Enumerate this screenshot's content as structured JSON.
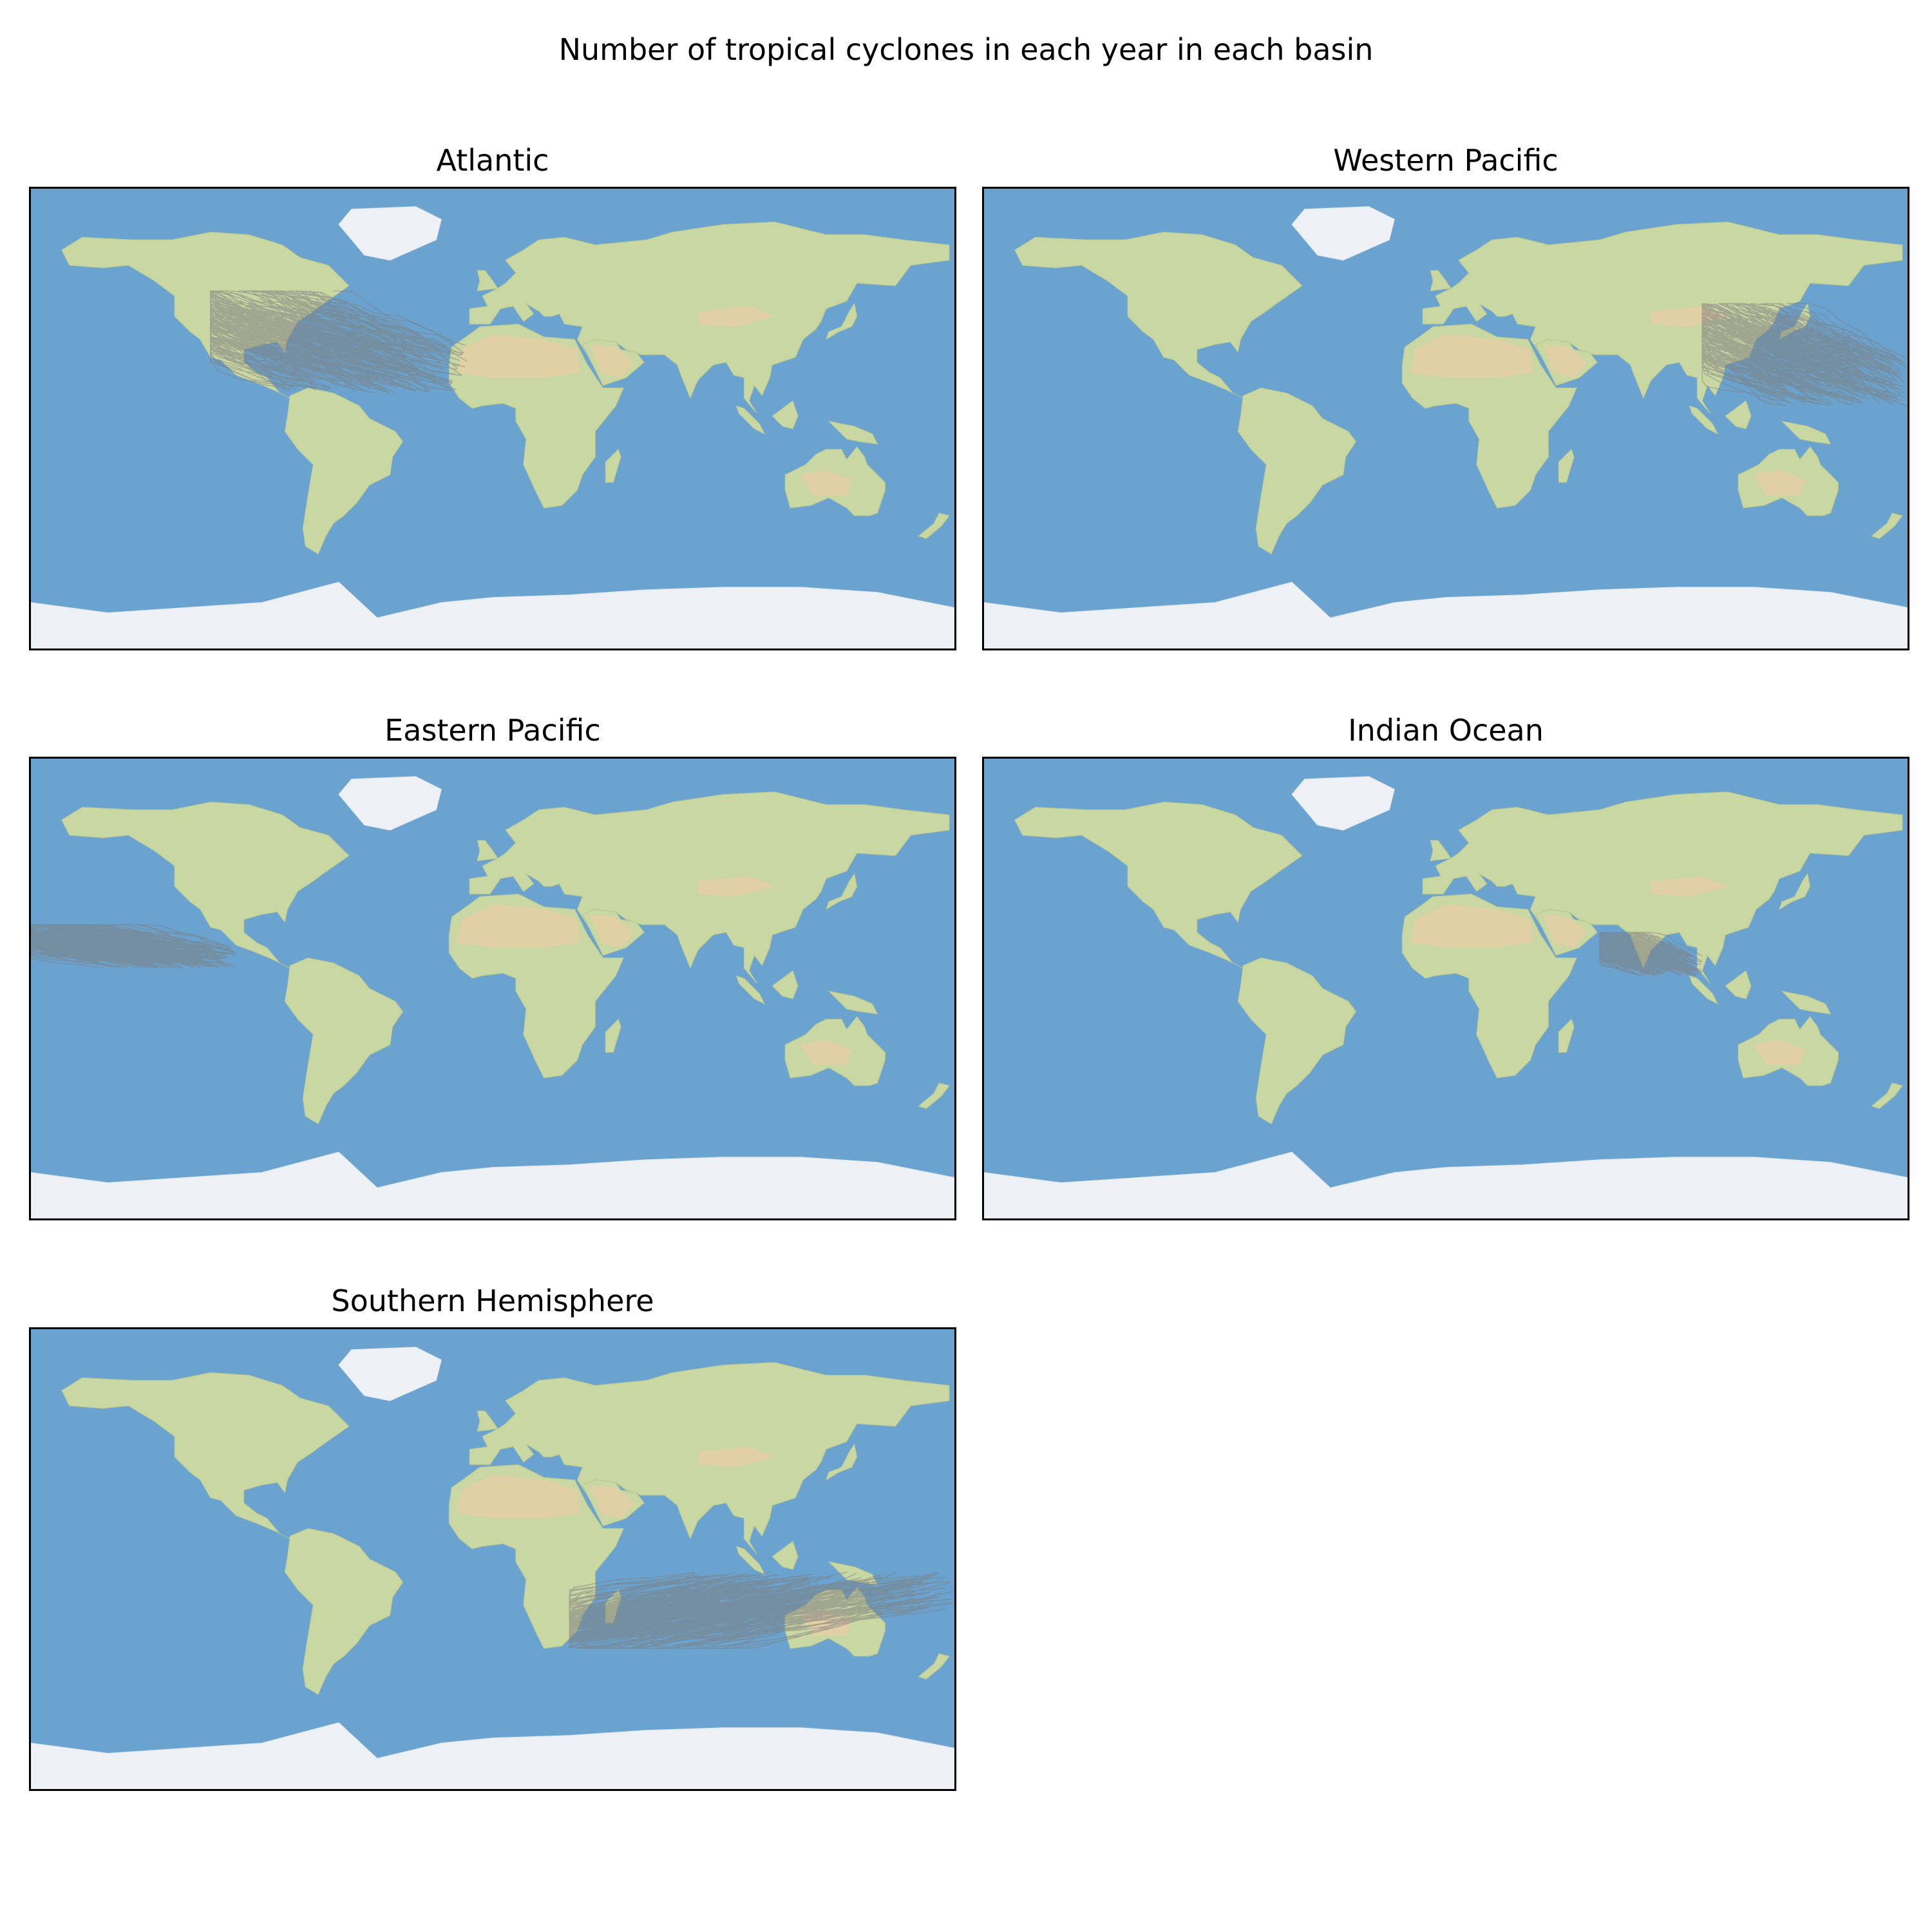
{
  "figure": {
    "title": "Number of tropical cyclones in each year in each basin"
  },
  "style": {
    "ocean_color": "#6aa3cf",
    "land_color": "#c9d7a3",
    "desert_color": "#e6cfa6",
    "ice_color": "#edf1f6",
    "track_color": "#7f7f7f"
  },
  "panels": [
    {
      "id": "atlantic",
      "title": "Atlantic",
      "track_region": {
        "lon": [
          -110,
          -10
        ],
        "lat": [
          10,
          50
        ]
      }
    },
    {
      "id": "western-pacific",
      "title": "Western Pacific",
      "track_region": {
        "lon": [
          100,
          180
        ],
        "lat": [
          5,
          45
        ]
      }
    },
    {
      "id": "eastern-pacific",
      "title": "Eastern Pacific",
      "track_region": {
        "lon": [
          -180,
          -100
        ],
        "lat": [
          8,
          25
        ]
      }
    },
    {
      "id": "indian-ocean",
      "title": "Indian Ocean",
      "track_region": {
        "lon": [
          60,
          100
        ],
        "lat": [
          5,
          22
        ]
      }
    },
    {
      "id": "southern-hemisphere",
      "title": "Southern Hemisphere",
      "track_region": {
        "lon": [
          30,
          180
        ],
        "lat": [
          -35,
          -5
        ]
      }
    }
  ]
}
